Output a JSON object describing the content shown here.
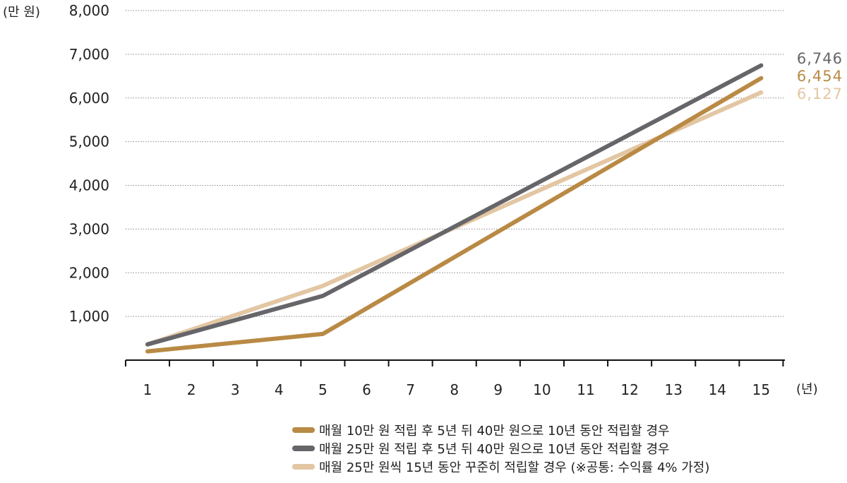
{
  "chart_data": {
    "type": "line",
    "y_unit": "(만 원)",
    "x_unit": "(년)",
    "ylim": [
      0,
      8000
    ],
    "y_ticks": [
      "1,000",
      "2,000",
      "3,000",
      "4,000",
      "5,000",
      "6,000",
      "7,000",
      "8,000"
    ],
    "y_tick_values": [
      1000,
      2000,
      3000,
      4000,
      5000,
      6000,
      7000,
      8000
    ],
    "x": [
      1,
      2,
      3,
      4,
      5,
      6,
      7,
      8,
      9,
      10,
      11,
      12,
      13,
      14,
      15
    ],
    "x_tick_labels": [
      "1",
      "2",
      "3",
      "4",
      "5",
      "6",
      "7",
      "8",
      "9",
      "10",
      "11",
      "12",
      "13",
      "14",
      "15"
    ],
    "grid": true,
    "legend_position": "bottom-right",
    "series": [
      {
        "name": "매월 10만 원 적립 후 5년 뒤 40만 원으로 10년 동안 적립할 경우",
        "color": "#b98a45",
        "points": [
          [
            1,
            200
          ],
          [
            5,
            600
          ],
          [
            15,
            6454
          ]
        ],
        "end_label": "6,454"
      },
      {
        "name": "매월 25만 원 적립 후 5년 뒤 40만 원으로 10년 동안 적립할 경우",
        "color": "#66666a",
        "points": [
          [
            1,
            360
          ],
          [
            5,
            1470
          ],
          [
            15,
            6746
          ]
        ],
        "end_label": "6,746"
      },
      {
        "name": "매월 25만 원씩 15년 동안 꾸준히 적립할 경우 (※공통: 수익률 4% 가정)",
        "color": "#e3c6a3",
        "points": [
          [
            1,
            360
          ],
          [
            5,
            1700
          ],
          [
            15,
            6127
          ]
        ],
        "end_label": "6,127"
      }
    ]
  }
}
